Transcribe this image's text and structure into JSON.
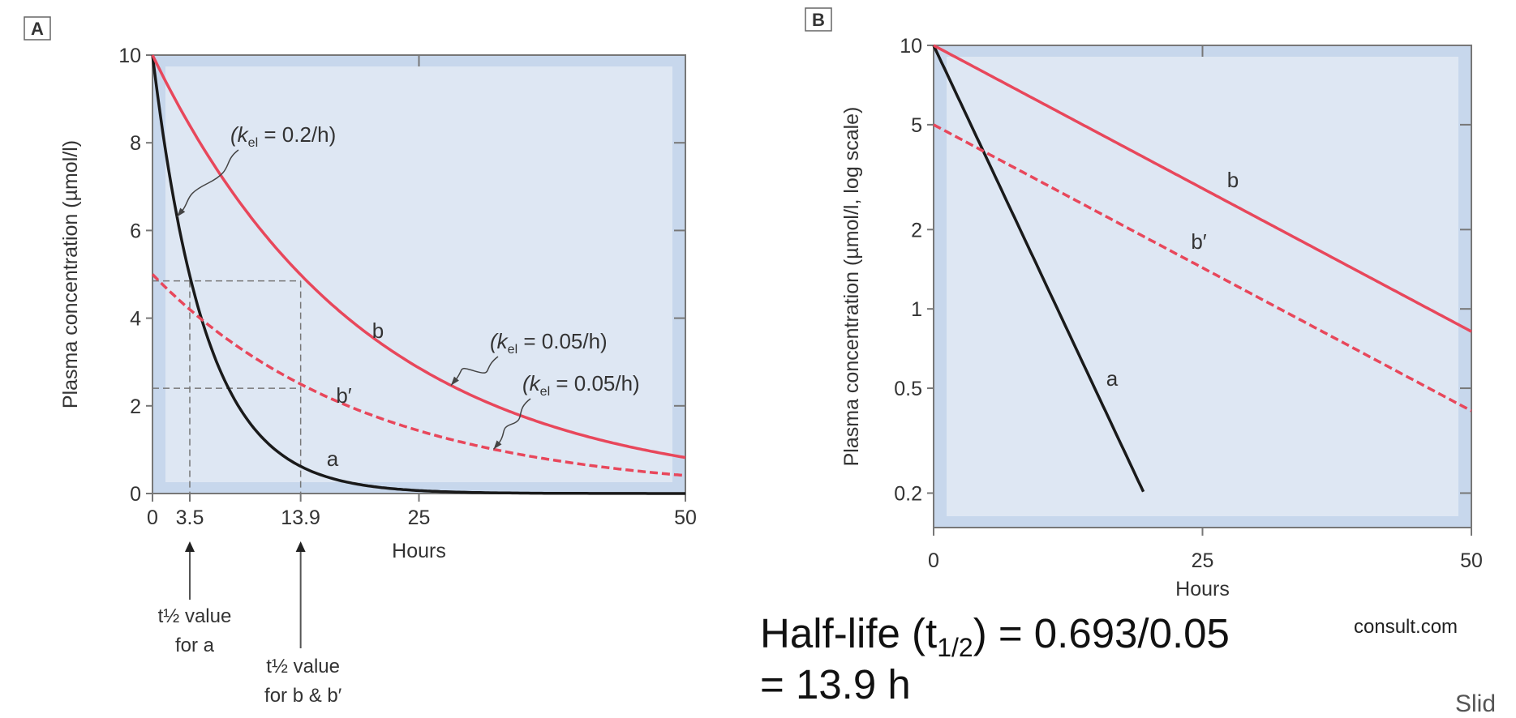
{
  "colors": {
    "outer_bg": "#c7d7ec",
    "inner_bg": "#dee7f3",
    "red": "#e8475b",
    "black": "#1a1a1a",
    "axis": "#777777"
  },
  "chart_data": [
    {
      "type": "line",
      "panel_label": "A",
      "xlabel": "Hours",
      "ylabel": "Plasma concentration (µmol/l)",
      "xlim": [
        0,
        50
      ],
      "ylim": [
        0,
        10
      ],
      "yscale": "linear",
      "x_ticks": [
        0,
        3.5,
        13.9,
        25,
        50
      ],
      "x_tick_labels": [
        "0",
        "3.5",
        "13.9",
        "25",
        "50"
      ],
      "y_ticks": [
        0,
        2,
        4,
        6,
        8,
        10
      ],
      "y_tick_labels": [
        "0",
        "2",
        "4",
        "6",
        "8",
        "10"
      ],
      "series": [
        {
          "name": "a",
          "label": "a",
          "c0": 10,
          "kel": 0.2,
          "style": "solid",
          "color": "black",
          "x_end": 50
        },
        {
          "name": "b",
          "label": "b",
          "c0": 10,
          "kel": 0.05,
          "style": "solid",
          "color": "red",
          "x_end": 50
        },
        {
          "name": "b'",
          "label": "b′",
          "c0": 5,
          "kel": 0.05,
          "style": "dashed",
          "color": "red",
          "x_end": 50
        }
      ],
      "annotations": [
        {
          "k": "(k",
          "sub": "el",
          "rest": " = 0.2/h)",
          "points_to": "a",
          "at_x": 2.3
        },
        {
          "k": "(k",
          "sub": "el",
          "rest": " = 0.05/h)",
          "points_to": "b",
          "at_x": 28
        },
        {
          "k": "(k",
          "sub": "el",
          "rest": " = 0.05/h)",
          "points_to": "b'",
          "at_x": 32
        }
      ],
      "guides": {
        "half_life_a": 3.5,
        "half_life_b": 13.9,
        "levels": [
          4.85,
          2.4
        ]
      },
      "arrow_notes": [
        {
          "x": 3.5,
          "lines": [
            "t½ value",
            "for a"
          ]
        },
        {
          "x": 13.9,
          "lines": [
            "t½ value",
            "for b & b′"
          ]
        }
      ]
    },
    {
      "type": "line",
      "panel_label": "B",
      "xlabel": "Hours",
      "ylabel": "Plasma concentration (µmol/l, log scale)",
      "xlim": [
        0,
        50
      ],
      "ylim": [
        0.148,
        10
      ],
      "yscale": "log",
      "x_ticks": [
        0,
        25,
        50
      ],
      "x_tick_labels": [
        "0",
        "25",
        "50"
      ],
      "y_ticks": [
        10,
        5,
        2,
        1,
        0.5,
        0.2
      ],
      "y_tick_labels": [
        "10",
        "5",
        "2",
        "1",
        "0.5",
        "0.2"
      ],
      "series": [
        {
          "name": "a",
          "label": "a",
          "c0": 10,
          "kel": 0.2,
          "style": "solid",
          "color": "black",
          "x_end": 19.6
        },
        {
          "name": "b",
          "label": "b",
          "c0": 10,
          "kel": 0.05,
          "style": "solid",
          "color": "red",
          "x_end": 50
        },
        {
          "name": "b'",
          "label": "b′",
          "c0": 5,
          "kel": 0.05,
          "style": "dashed",
          "color": "red",
          "x_end": 50
        }
      ]
    }
  ],
  "caption": {
    "line1_pre": "Half-life (t",
    "line1_sub": "1/2",
    "line1_post": ") = 0.693/0.05",
    "line2": "= 13.9 h"
  },
  "source_fragment": "consult.com",
  "corner_fragment": "Slid"
}
